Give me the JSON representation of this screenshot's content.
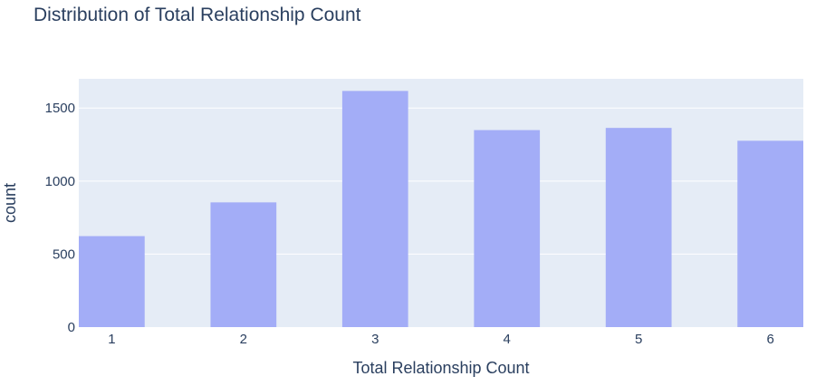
{
  "chart_data": {
    "type": "bar",
    "title": "Distribution of Total Relationship Count",
    "xlabel": "Total Relationship Count",
    "ylabel": "count",
    "categories": [
      "1",
      "2",
      "3",
      "4",
      "5",
      "6"
    ],
    "values": [
      623,
      854,
      1617,
      1349,
      1364,
      1276
    ],
    "ylim": [
      0,
      1700
    ],
    "yticks": [
      0,
      500,
      1000,
      1500
    ],
    "grid": true,
    "colors": {
      "bar": "#a3adf7",
      "plot_background": "#e5ecf6",
      "grid": "#ffffff",
      "text": "#2a3f5f"
    }
  }
}
